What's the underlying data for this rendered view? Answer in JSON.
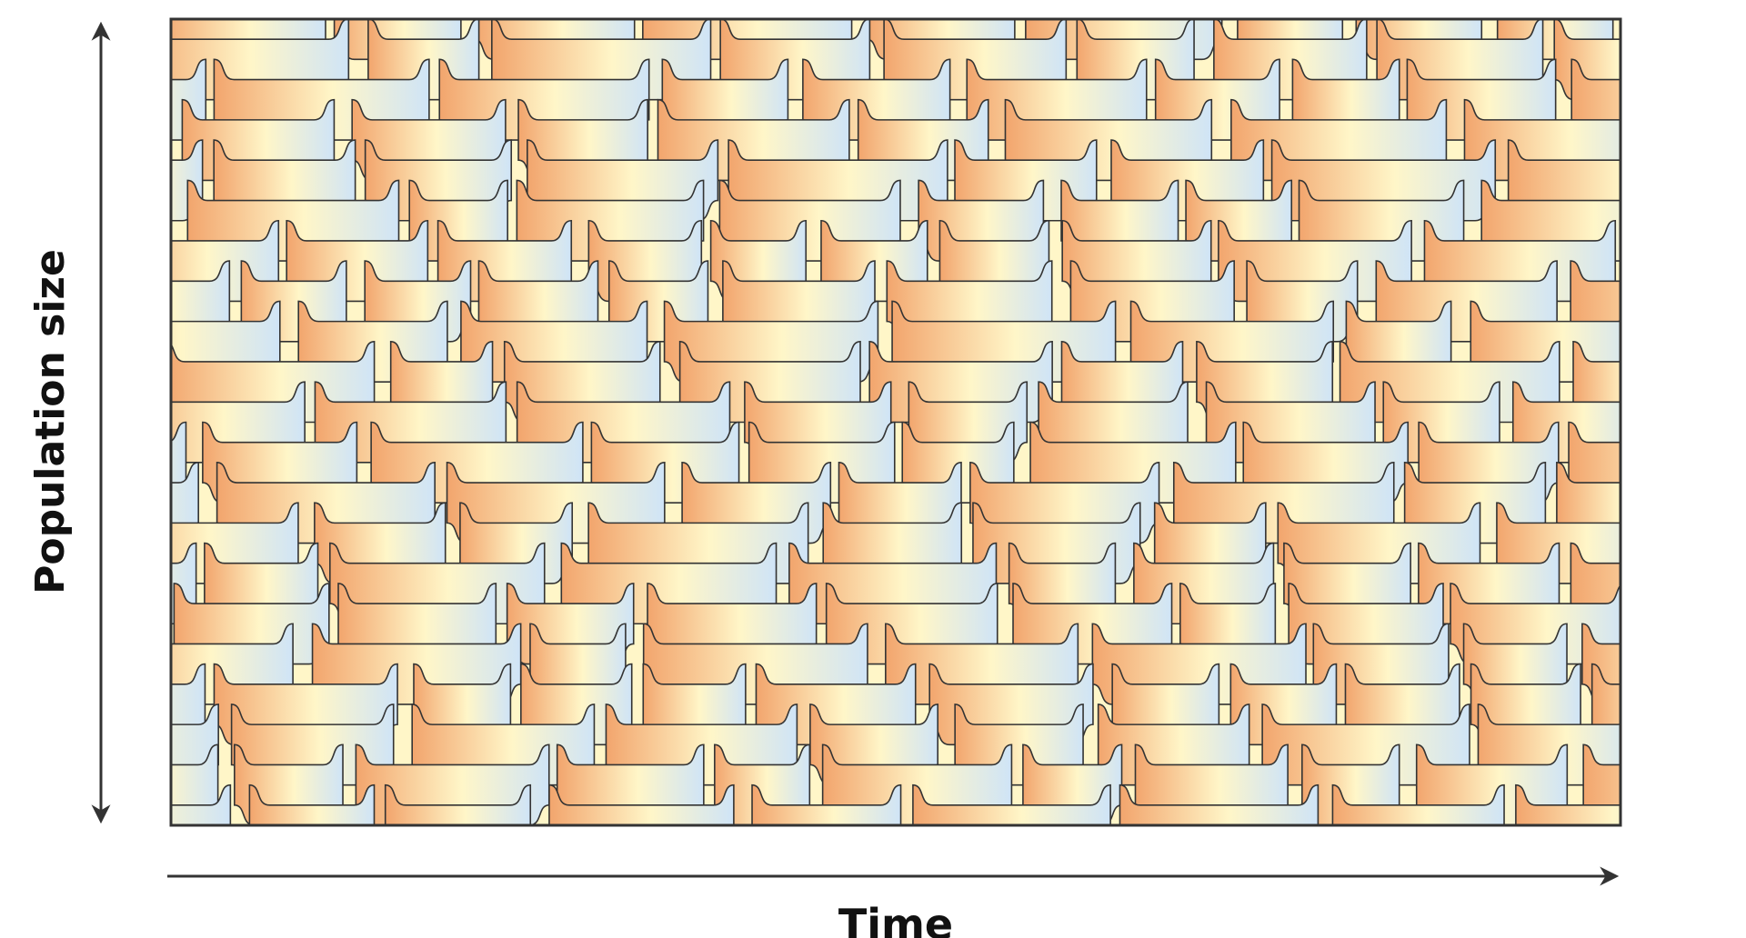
{
  "diagram": {
    "y_axis_label": "Population size",
    "x_axis_label": "Time",
    "colors": {
      "orange": "#f2a56d",
      "cream": "#fff6c8",
      "blue": "#cfe4f7",
      "outline": "#333333",
      "frame": "#333333",
      "arrow": "#333333"
    }
  }
}
